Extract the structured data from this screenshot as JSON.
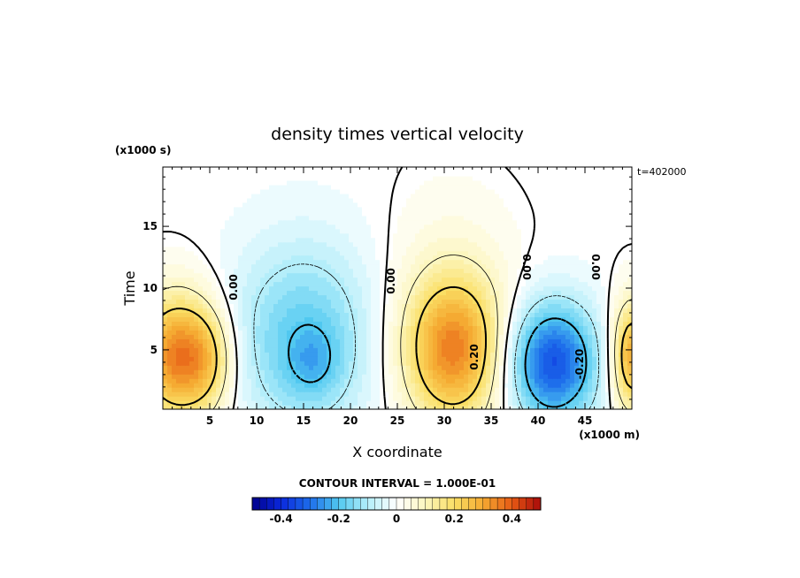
{
  "chart_data": {
    "type": "heatmap",
    "title": "density times vertical velocity",
    "xlabel": "X coordinate",
    "ylabel": "Time",
    "x_units": "(x1000 m)",
    "y_units": "(x1000 s)",
    "annotation_time": "t=402000",
    "xlim": [
      0,
      50
    ],
    "ylim": [
      0.2,
      19.8
    ],
    "x_ticks": [
      5,
      10,
      15,
      20,
      25,
      30,
      35,
      40,
      45
    ],
    "y_ticks": [
      5,
      10,
      15
    ],
    "contour_interval_text": "CONTOUR INTERVAL = 1.000E-01",
    "contour_labels": [
      "0.00",
      "0.00",
      "0.00",
      "0.00",
      "0.20",
      "-0.20"
    ],
    "colorbar": {
      "range": [
        -0.5,
        0.5
      ],
      "ticks": [
        -0.4,
        -0.2,
        0,
        0.2,
        0.4
      ],
      "tick_labels": [
        "-0.4",
        "-0.2",
        "0",
        "0.2",
        "0.4"
      ]
    },
    "features": [
      {
        "x": 1.5,
        "y": 4.5,
        "value": 0.35,
        "sx": 3.0,
        "sy": 3.6
      },
      {
        "x": 5.0,
        "y": 4.2,
        "value": 0.12,
        "sx": 2.0,
        "sy": 3.0
      },
      {
        "x": 15.0,
        "y": 6.0,
        "value": -0.18,
        "sx": 5.5,
        "sy": 5.5
      },
      {
        "x": 16.0,
        "y": 4.0,
        "value": -0.08,
        "sx": 2.0,
        "sy": 2.0
      },
      {
        "x": 31.0,
        "y": 5.0,
        "value": 0.32,
        "sx": 3.8,
        "sy": 4.2
      },
      {
        "x": 30.5,
        "y": 9.0,
        "value": 0.05,
        "sx": 5.0,
        "sy": 6.0
      },
      {
        "x": 41.5,
        "y": 4.0,
        "value": -0.35,
        "sx": 3.5,
        "sy": 3.5
      },
      {
        "x": 50.0,
        "y": 4.5,
        "value": 0.3,
        "sx": 1.6,
        "sy": 3.2
      }
    ]
  }
}
